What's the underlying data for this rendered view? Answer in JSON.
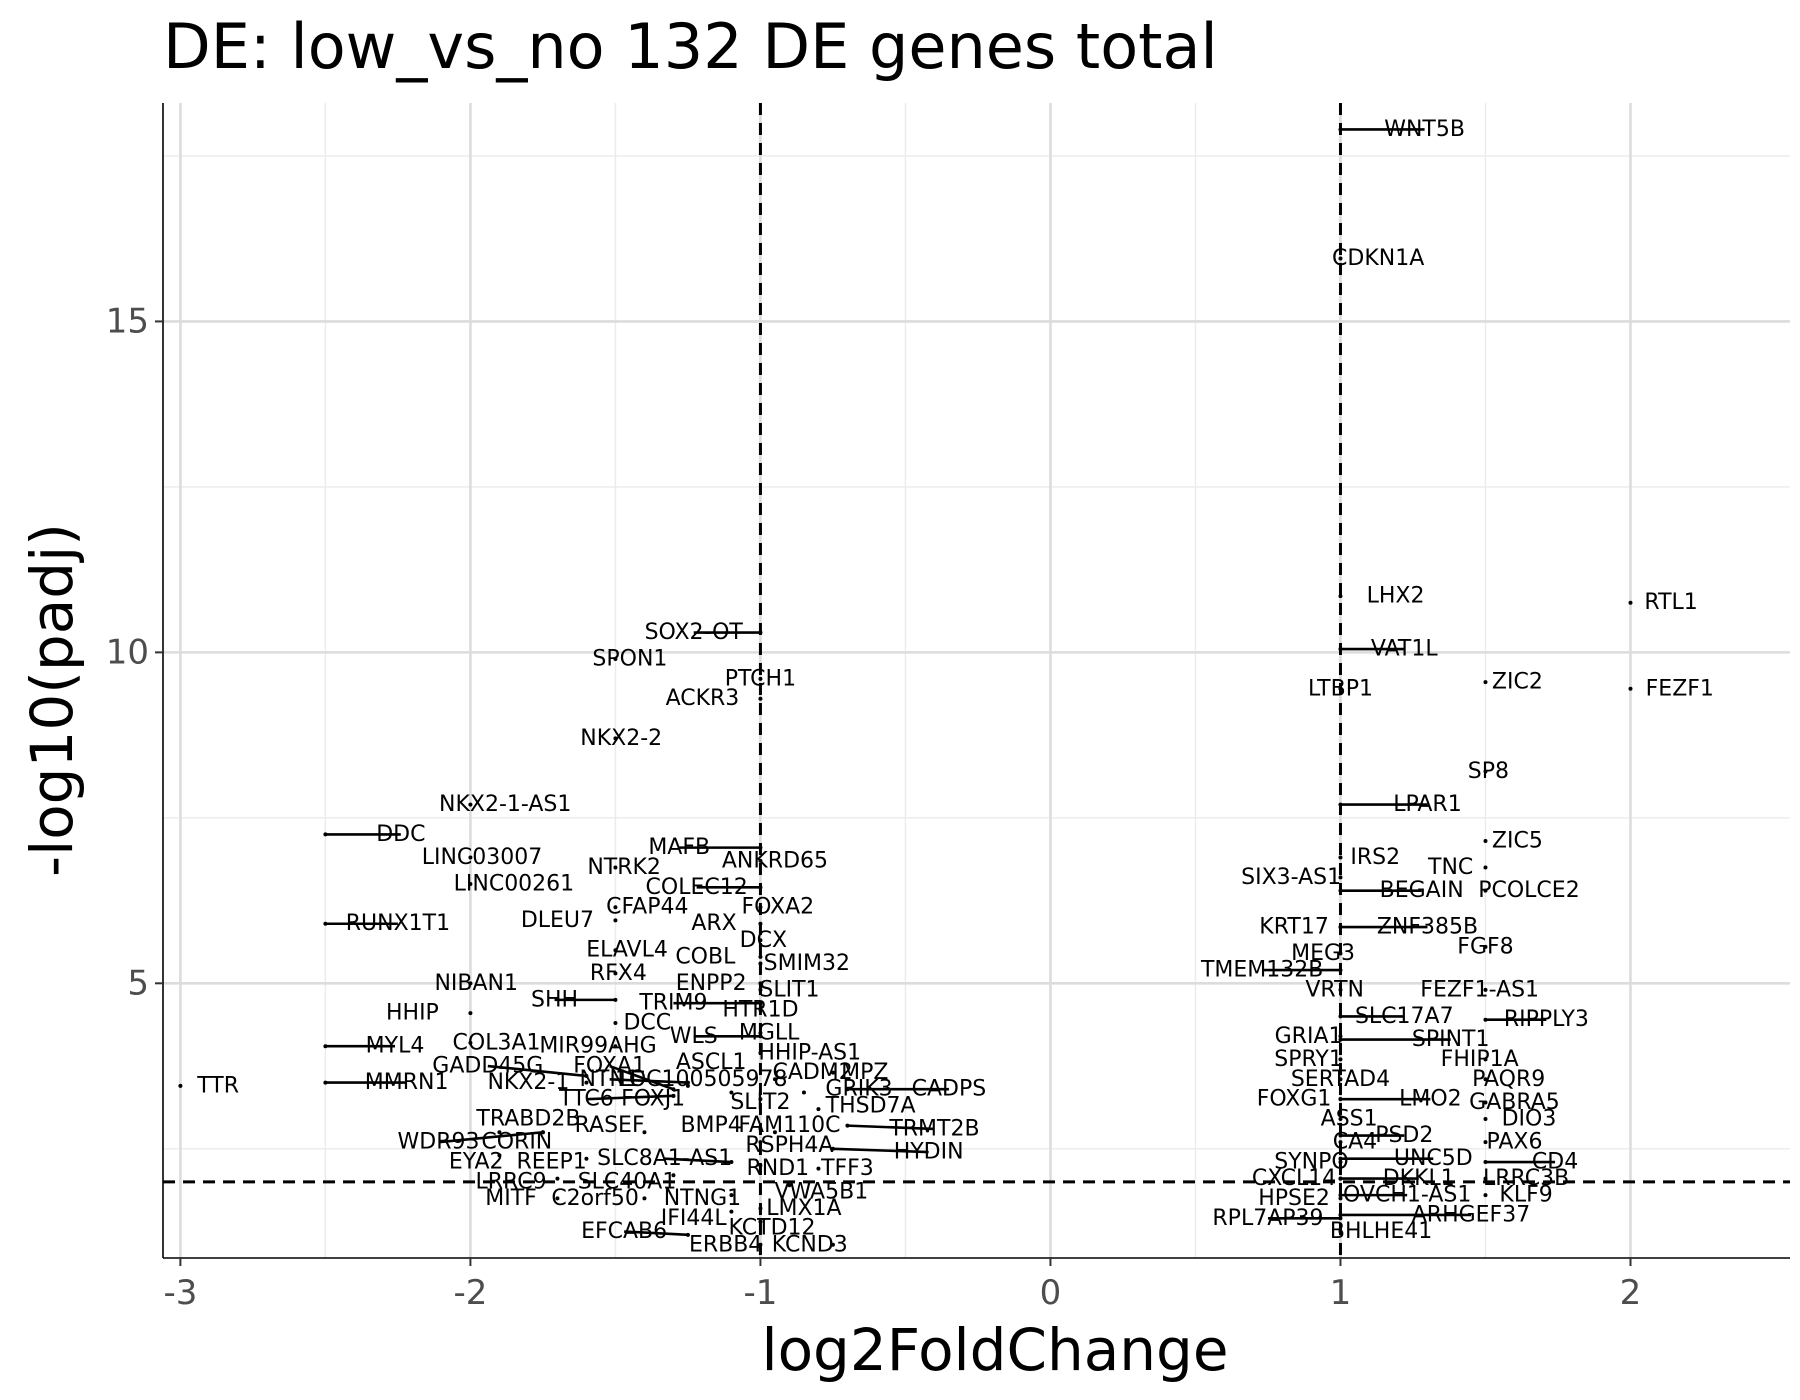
{
  "chart_data": {
    "type": "scatter",
    "title": "DE: low_vs_no 132 DE genes total",
    "xlabel": "log2FoldChange",
    "ylabel": "-log10(padj)",
    "xlim": [
      -3.06,
      2.55
    ],
    "ylim": [
      0.85,
      18.3
    ],
    "x_ticks": [
      -3,
      -2,
      -1,
      0,
      1,
      2
    ],
    "x_tick_labels": [
      "-3",
      "-2",
      "-1",
      "0",
      "1",
      "2"
    ],
    "y_ticks": [
      5,
      10,
      15
    ],
    "y_tick_labels": [
      "5",
      "10",
      "15"
    ],
    "grid": true,
    "thresholds": {
      "log2fc": [
        -1,
        1
      ],
      "neg_log10_padj": 2.0
    },
    "genes": [
      {
        "name": "WNT5B",
        "x": 1.0,
        "y": 17.9,
        "lx": 1.29,
        "ly": 17.9
      },
      {
        "name": "CDKN1A",
        "x": 1.0,
        "y": 15.95,
        "lx": 1.13,
        "ly": 15.95
      },
      {
        "name": "RTL1",
        "x": 2.0,
        "y": 10.75,
        "lx": 2.14,
        "ly": 10.75
      },
      {
        "name": "FEZF1",
        "x": 2.0,
        "y": 9.45,
        "lx": 2.17,
        "ly": 9.45
      },
      {
        "name": "LHX2",
        "x": 1.0,
        "y": 10.85,
        "lx": 1.19,
        "ly": 10.85
      },
      {
        "name": "VAT1L",
        "x": 1.0,
        "y": 10.05,
        "lx": 1.22,
        "ly": 10.05
      },
      {
        "name": "ZIC2",
        "x": 1.5,
        "y": 9.55,
        "lx": 1.61,
        "ly": 9.55
      },
      {
        "name": "LTBP1",
        "x": 1.0,
        "y": 9.45,
        "lx": 1.0,
        "ly": 9.45
      },
      {
        "name": "SP8",
        "x": 1.5,
        "y": 8.2,
        "lx": 1.51,
        "ly": 8.2
      },
      {
        "name": "LPAR1",
        "x": 1.0,
        "y": 7.7,
        "lx": 1.3,
        "ly": 7.7
      },
      {
        "name": "ZIC5",
        "x": 1.5,
        "y": 7.15,
        "lx": 1.61,
        "ly": 7.15
      },
      {
        "name": "IRS2",
        "x": 1.0,
        "y": 6.9,
        "lx": 1.12,
        "ly": 6.9
      },
      {
        "name": "TNC",
        "x": 1.5,
        "y": 6.75,
        "lx": 1.38,
        "ly": 6.75
      },
      {
        "name": "SIX3-AS1",
        "x": 1.0,
        "y": 6.6,
        "lx": 0.83,
        "ly": 6.6
      },
      {
        "name": "BEGAIN",
        "x": 1.0,
        "y": 6.4,
        "lx": 1.28,
        "ly": 6.4
      },
      {
        "name": "PCOLCE2",
        "x": 1.5,
        "y": 6.4,
        "lx": 1.65,
        "ly": 6.4
      },
      {
        "name": "KRT17",
        "x": 1.0,
        "y": 5.85,
        "lx": 0.84,
        "ly": 5.85
      },
      {
        "name": "ZNF385B",
        "x": 1.0,
        "y": 5.85,
        "lx": 1.3,
        "ly": 5.85
      },
      {
        "name": "MEG3",
        "x": 1.0,
        "y": 5.45,
        "lx": 0.94,
        "ly": 5.45
      },
      {
        "name": "FGF8",
        "x": 1.5,
        "y": 5.55,
        "lx": 1.5,
        "ly": 5.55
      },
      {
        "name": "TMEM132B",
        "x": 1.0,
        "y": 5.2,
        "lx": 0.73,
        "ly": 5.2
      },
      {
        "name": "VRTN",
        "x": 1.0,
        "y": 4.9,
        "lx": 0.98,
        "ly": 4.9
      },
      {
        "name": "FEZF1-AS1",
        "x": 1.5,
        "y": 4.9,
        "lx": 1.48,
        "ly": 4.9
      },
      {
        "name": "SLC17A7",
        "x": 1.0,
        "y": 4.5,
        "lx": 1.22,
        "ly": 4.5
      },
      {
        "name": "RIPPLY3",
        "x": 1.5,
        "y": 4.45,
        "lx": 1.71,
        "ly": 4.45
      },
      {
        "name": "GRIA1",
        "x": 1.0,
        "y": 4.2,
        "lx": 0.89,
        "ly": 4.2
      },
      {
        "name": "SPINT1",
        "x": 1.0,
        "y": 4.15,
        "lx": 1.38,
        "ly": 4.15
      },
      {
        "name": "SPRY1",
        "x": 1.0,
        "y": 3.85,
        "lx": 0.89,
        "ly": 3.85
      },
      {
        "name": "FHIP1A",
        "x": 1.5,
        "y": 3.85,
        "lx": 1.48,
        "ly": 3.85
      },
      {
        "name": "SERTAD4",
        "x": 1.0,
        "y": 3.55,
        "lx": 1.0,
        "ly": 3.55
      },
      {
        "name": "PAQR9",
        "x": 1.5,
        "y": 3.55,
        "lx": 1.58,
        "ly": 3.55
      },
      {
        "name": "FOXG1",
        "x": 1.0,
        "y": 3.25,
        "lx": 0.84,
        "ly": 3.25
      },
      {
        "name": "LMO2",
        "x": 1.0,
        "y": 3.25,
        "lx": 1.31,
        "ly": 3.25
      },
      {
        "name": "GABRA5",
        "x": 1.5,
        "y": 3.2,
        "lx": 1.6,
        "ly": 3.2
      },
      {
        "name": "ASS1",
        "x": 1.0,
        "y": 2.95,
        "lx": 1.03,
        "ly": 2.95
      },
      {
        "name": "DIO3",
        "x": 1.5,
        "y": 2.95,
        "lx": 1.65,
        "ly": 2.95
      },
      {
        "name": "PSD2",
        "x": 1.0,
        "y": 2.7,
        "lx": 1.22,
        "ly": 2.7
      },
      {
        "name": "CA4",
        "x": 1.0,
        "y": 2.6,
        "lx": 1.05,
        "ly": 2.6
      },
      {
        "name": "PAX6",
        "x": 1.5,
        "y": 2.6,
        "lx": 1.6,
        "ly": 2.6
      },
      {
        "name": "UNC5D",
        "x": 1.0,
        "y": 2.35,
        "lx": 1.32,
        "ly": 2.35
      },
      {
        "name": "SYNPO",
        "x": 1.0,
        "y": 2.3,
        "lx": 0.9,
        "ly": 2.3
      },
      {
        "name": "CD4",
        "x": 1.5,
        "y": 2.3,
        "lx": 1.74,
        "ly": 2.3
      },
      {
        "name": "CXCL14",
        "x": 1.0,
        "y": 2.05,
        "lx": 0.84,
        "ly": 2.05
      },
      {
        "name": "DKKL1",
        "x": 1.0,
        "y": 2.05,
        "lx": 1.27,
        "ly": 2.05
      },
      {
        "name": "LRRC3B",
        "x": 1.5,
        "y": 2.05,
        "lx": 1.64,
        "ly": 2.05
      },
      {
        "name": "HPSE2",
        "x": 1.0,
        "y": 1.75,
        "lx": 0.84,
        "ly": 1.75
      },
      {
        "name": "OVCH1-AS1",
        "x": 1.0,
        "y": 1.8,
        "lx": 1.23,
        "ly": 1.8
      },
      {
        "name": "KLF9",
        "x": 1.5,
        "y": 1.8,
        "lx": 1.64,
        "ly": 1.8
      },
      {
        "name": "ARHGEF37",
        "x": 1.0,
        "y": 1.5,
        "lx": 1.45,
        "ly": 1.5
      },
      {
        "name": "RPL7AP39",
        "x": 1.0,
        "y": 1.45,
        "lx": 0.75,
        "ly": 1.45
      },
      {
        "name": "BHLHE41",
        "x": 1.0,
        "y": 1.25,
        "lx": 1.14,
        "ly": 1.25
      },
      {
        "name": "TTR",
        "x": -3.0,
        "y": 3.45,
        "lx": -2.87,
        "ly": 3.45
      },
      {
        "name": "SOX2-OT",
        "x": -1.0,
        "y": 10.3,
        "lx": -1.23,
        "ly": 10.3
      },
      {
        "name": "SPON1",
        "x": -1.5,
        "y": 9.9,
        "lx": -1.45,
        "ly": 9.9
      },
      {
        "name": "PTCH1",
        "x": -1.0,
        "y": 9.6,
        "lx": -1.0,
        "ly": 9.6
      },
      {
        "name": "ACKR3",
        "x": -1.0,
        "y": 9.3,
        "lx": -1.2,
        "ly": 9.3
      },
      {
        "name": "NKX2-2",
        "x": -1.5,
        "y": 8.7,
        "lx": -1.48,
        "ly": 8.7
      },
      {
        "name": "NKX2-1-AS1",
        "x": -2.0,
        "y": 7.7,
        "lx": -1.88,
        "ly": 7.7
      },
      {
        "name": "DDC",
        "x": -2.5,
        "y": 7.25,
        "lx": -2.24,
        "ly": 7.25
      },
      {
        "name": "MAFB",
        "x": -1.0,
        "y": 7.05,
        "lx": -1.28,
        "ly": 7.05
      },
      {
        "name": "LINC03007",
        "x": -2.0,
        "y": 6.9,
        "lx": -1.96,
        "ly": 6.9
      },
      {
        "name": "ANKRD65",
        "x": -1.0,
        "y": 6.85,
        "lx": -0.95,
        "ly": 6.85
      },
      {
        "name": "NTRK2",
        "x": -1.5,
        "y": 6.75,
        "lx": -1.47,
        "ly": 6.75
      },
      {
        "name": "LINC00261",
        "x": -2.0,
        "y": 6.5,
        "lx": -1.85,
        "ly": 6.5
      },
      {
        "name": "COLEC12",
        "x": -1.0,
        "y": 6.45,
        "lx": -1.22,
        "ly": 6.45
      },
      {
        "name": "FOXA2",
        "x": -1.0,
        "y": 6.15,
        "lx": -0.94,
        "ly": 6.15
      },
      {
        "name": "CFAP44",
        "x": -1.5,
        "y": 6.15,
        "lx": -1.39,
        "ly": 6.15
      },
      {
        "name": "RUNX1T1",
        "x": -2.5,
        "y": 5.9,
        "lx": -2.25,
        "ly": 5.9
      },
      {
        "name": "DLEU7",
        "x": -1.5,
        "y": 5.95,
        "lx": -1.7,
        "ly": 5.95
      },
      {
        "name": "ARX",
        "x": -1.0,
        "y": 5.9,
        "lx": -1.16,
        "ly": 5.9
      },
      {
        "name": "DCX",
        "x": -1.0,
        "y": 5.65,
        "lx": -0.99,
        "ly": 5.65
      },
      {
        "name": "ELAVL4",
        "x": -1.5,
        "y": 5.5,
        "lx": -1.46,
        "ly": 5.5
      },
      {
        "name": "COBL",
        "x": -1.0,
        "y": 5.4,
        "lx": -1.19,
        "ly": 5.4
      },
      {
        "name": "SMIM32",
        "x": -1.0,
        "y": 5.3,
        "lx": -0.84,
        "ly": 5.3
      },
      {
        "name": "RFX4",
        "x": -1.5,
        "y": 5.15,
        "lx": -1.49,
        "ly": 5.15
      },
      {
        "name": "ENPP2",
        "x": -1.0,
        "y": 5.0,
        "lx": -1.17,
        "ly": 5.0
      },
      {
        "name": "SLIT1",
        "x": -1.0,
        "y": 4.9,
        "lx": -0.9,
        "ly": 4.9
      },
      {
        "name": "NIBAN1",
        "x": -2.0,
        "y": 5.0,
        "lx": -1.98,
        "ly": 5.0
      },
      {
        "name": "SHH",
        "x": -1.5,
        "y": 4.75,
        "lx": -1.71,
        "ly": 4.75
      },
      {
        "name": "TRIM9",
        "x": -1.0,
        "y": 4.7,
        "lx": -1.3,
        "ly": 4.7
      },
      {
        "name": "HTR1D",
        "x": -1.0,
        "y": 4.6,
        "lx": -1.0,
        "ly": 4.6
      },
      {
        "name": "HHIP",
        "x": -2.0,
        "y": 4.55,
        "lx": -2.2,
        "ly": 4.55
      },
      {
        "name": "DCC",
        "x": -1.5,
        "y": 4.4,
        "lx": -1.39,
        "ly": 4.4
      },
      {
        "name": "MGLL",
        "x": -1.0,
        "y": 4.25,
        "lx": -0.97,
        "ly": 4.25
      },
      {
        "name": "WLS",
        "x": -1.0,
        "y": 4.2,
        "lx": -1.23,
        "ly": 4.2
      },
      {
        "name": "MYL4",
        "x": -2.5,
        "y": 4.05,
        "lx": -2.26,
        "ly": 4.05
      },
      {
        "name": "COL3A1",
        "x": -2.0,
        "y": 4.1,
        "lx": -1.91,
        "ly": 4.1
      },
      {
        "name": "MIR99AHG",
        "x": -1.5,
        "y": 4.05,
        "lx": -1.56,
        "ly": 4.05
      },
      {
        "name": "HHIP-AS1",
        "x": -1.0,
        "y": 3.95,
        "lx": -0.83,
        "ly": 3.95
      },
      {
        "name": "GADD45G",
        "x": -1.6,
        "y": 3.6,
        "lx": -1.94,
        "ly": 3.75
      },
      {
        "name": "FOXA1",
        "x": -1.3,
        "y": 3.4,
        "lx": -1.52,
        "ly": 3.75
      },
      {
        "name": "ASCL1",
        "x": -1.25,
        "y": 3.45,
        "lx": -1.17,
        "ly": 3.8
      },
      {
        "name": "CADM2",
        "x": -0.95,
        "y": 3.55,
        "lx": -0.82,
        "ly": 3.65
      },
      {
        "name": "MPZ",
        "x": -0.75,
        "y": 3.65,
        "lx": -0.64,
        "ly": 3.65
      },
      {
        "name": "MMRN1",
        "x": -2.5,
        "y": 3.5,
        "lx": -2.22,
        "ly": 3.5
      },
      {
        "name": "NKX2-1",
        "x": -1.6,
        "y": 3.5,
        "lx": -1.8,
        "ly": 3.5
      },
      {
        "name": "NTN1",
        "x": -1.25,
        "y": 3.5,
        "lx": -1.52,
        "ly": 3.55
      },
      {
        "name": "LOC100505978",
        "x": -1.1,
        "y": 3.35,
        "lx": -1.2,
        "ly": 3.55
      },
      {
        "name": "GRIK3",
        "x": -0.85,
        "y": 3.35,
        "lx": -0.66,
        "ly": 3.4
      },
      {
        "name": "CADPS",
        "x": -0.7,
        "y": 3.4,
        "lx": -0.35,
        "ly": 3.4
      },
      {
        "name": "TTC6",
        "x": -1.3,
        "y": 3.3,
        "lx": -1.6,
        "ly": 3.25
      },
      {
        "name": "FOXJ1",
        "x": -1.3,
        "y": 3.3,
        "lx": -1.37,
        "ly": 3.25
      },
      {
        "name": "SLIT2",
        "x": -1.0,
        "y": 3.25,
        "lx": -1.0,
        "ly": 3.2
      },
      {
        "name": "THSD7A",
        "x": -0.8,
        "y": 3.1,
        "lx": -0.62,
        "ly": 3.15
      },
      {
        "name": "TRABD2B",
        "x": -1.9,
        "y": 2.75,
        "lx": -1.8,
        "ly": 2.95
      },
      {
        "name": "RASEF",
        "x": -1.4,
        "y": 2.75,
        "lx": -1.52,
        "ly": 2.85
      },
      {
        "name": "BMP4",
        "x": -1.0,
        "y": 2.8,
        "lx": -1.17,
        "ly": 2.85
      },
      {
        "name": "FAM110C",
        "x": -0.95,
        "y": 2.75,
        "lx": -0.9,
        "ly": 2.85
      },
      {
        "name": "TRMT2B",
        "x": -0.7,
        "y": 2.85,
        "lx": -0.4,
        "ly": 2.8
      },
      {
        "name": "WDR93",
        "x": -1.75,
        "y": 2.75,
        "lx": -2.11,
        "ly": 2.6
      },
      {
        "name": "CORIN",
        "x": -1.75,
        "y": 2.75,
        "lx": -1.84,
        "ly": 2.6
      },
      {
        "name": "RSPH4A",
        "x": -1.0,
        "y": 2.6,
        "lx": -0.9,
        "ly": 2.55
      },
      {
        "name": "HYDIN",
        "x": -0.75,
        "y": 2.5,
        "lx": -0.42,
        "ly": 2.45
      },
      {
        "name": "EYA2",
        "x": -1.9,
        "y": 2.4,
        "lx": -1.98,
        "ly": 2.3
      },
      {
        "name": "REEP1",
        "x": -1.6,
        "y": 2.35,
        "lx": -1.72,
        "ly": 2.3
      },
      {
        "name": "SLC8A1-AS1",
        "x": -1.1,
        "y": 2.3,
        "lx": -1.33,
        "ly": 2.35
      },
      {
        "name": "RND1",
        "x": -1.0,
        "y": 2.25,
        "lx": -0.94,
        "ly": 2.2
      },
      {
        "name": "TFF3",
        "x": -0.8,
        "y": 2.2,
        "lx": -0.7,
        "ly": 2.2
      },
      {
        "name": "LRRC9",
        "x": -1.7,
        "y": 2.05,
        "lx": -1.86,
        "ly": 2.0
      },
      {
        "name": "SLC40A1",
        "x": -1.3,
        "y": 2.1,
        "lx": -1.46,
        "ly": 2.0
      },
      {
        "name": "VWA5B1",
        "x": -0.9,
        "y": 1.95,
        "lx": -0.79,
        "ly": 1.85
      },
      {
        "name": "MITF",
        "x": -1.7,
        "y": 1.75,
        "lx": -1.86,
        "ly": 1.75
      },
      {
        "name": "C2orf50",
        "x": -1.4,
        "y": 1.75,
        "lx": -1.57,
        "ly": 1.75
      },
      {
        "name": "NTNG1",
        "x": -1.1,
        "y": 1.8,
        "lx": -1.2,
        "ly": 1.75
      },
      {
        "name": "LMX1A",
        "x": -1.0,
        "y": 1.6,
        "lx": -0.85,
        "ly": 1.6
      },
      {
        "name": "IFI44L",
        "x": -1.1,
        "y": 1.55,
        "lx": -1.23,
        "ly": 1.45
      },
      {
        "name": "EFCAB6",
        "x": -1.25,
        "y": 1.2,
        "lx": -1.47,
        "ly": 1.25
      },
      {
        "name": "KCTD12",
        "x": -1.0,
        "y": 1.4,
        "lx": -0.96,
        "ly": 1.3
      },
      {
        "name": "ERBB4",
        "x": -1.0,
        "y": 1.05,
        "lx": -1.12,
        "ly": 1.05
      },
      {
        "name": "KCND3",
        "x": -0.75,
        "y": 1.05,
        "lx": -0.83,
        "ly": 1.05
      }
    ]
  }
}
